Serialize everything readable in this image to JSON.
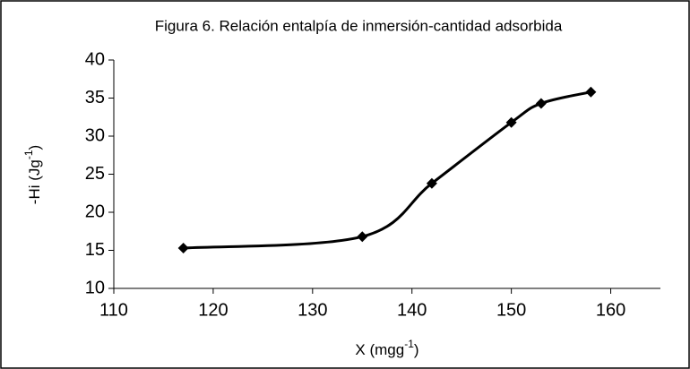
{
  "chart_data": {
    "type": "line",
    "title": "Figura 6. Relación entalpía de inmersión-cantidad adsorbida",
    "xlabel": {
      "text": "X (mgg",
      "sup": "-1",
      "end": ")"
    },
    "ylabel": {
      "text": "-Hi (Jg",
      "sup": "-1",
      "end": ")"
    },
    "x": [
      117,
      135,
      142,
      150,
      153,
      158
    ],
    "values": [
      15.3,
      16.8,
      23.8,
      31.8,
      34.3,
      35.8
    ],
    "color": "#000000",
    "smooth": true,
    "marker": "diamond",
    "xlim": [
      110,
      165
    ],
    "xticks": [
      110,
      120,
      130,
      140,
      150,
      160
    ],
    "ylim": [
      10,
      40
    ],
    "yticks": [
      10,
      15,
      20,
      25,
      30,
      35,
      40
    ]
  }
}
